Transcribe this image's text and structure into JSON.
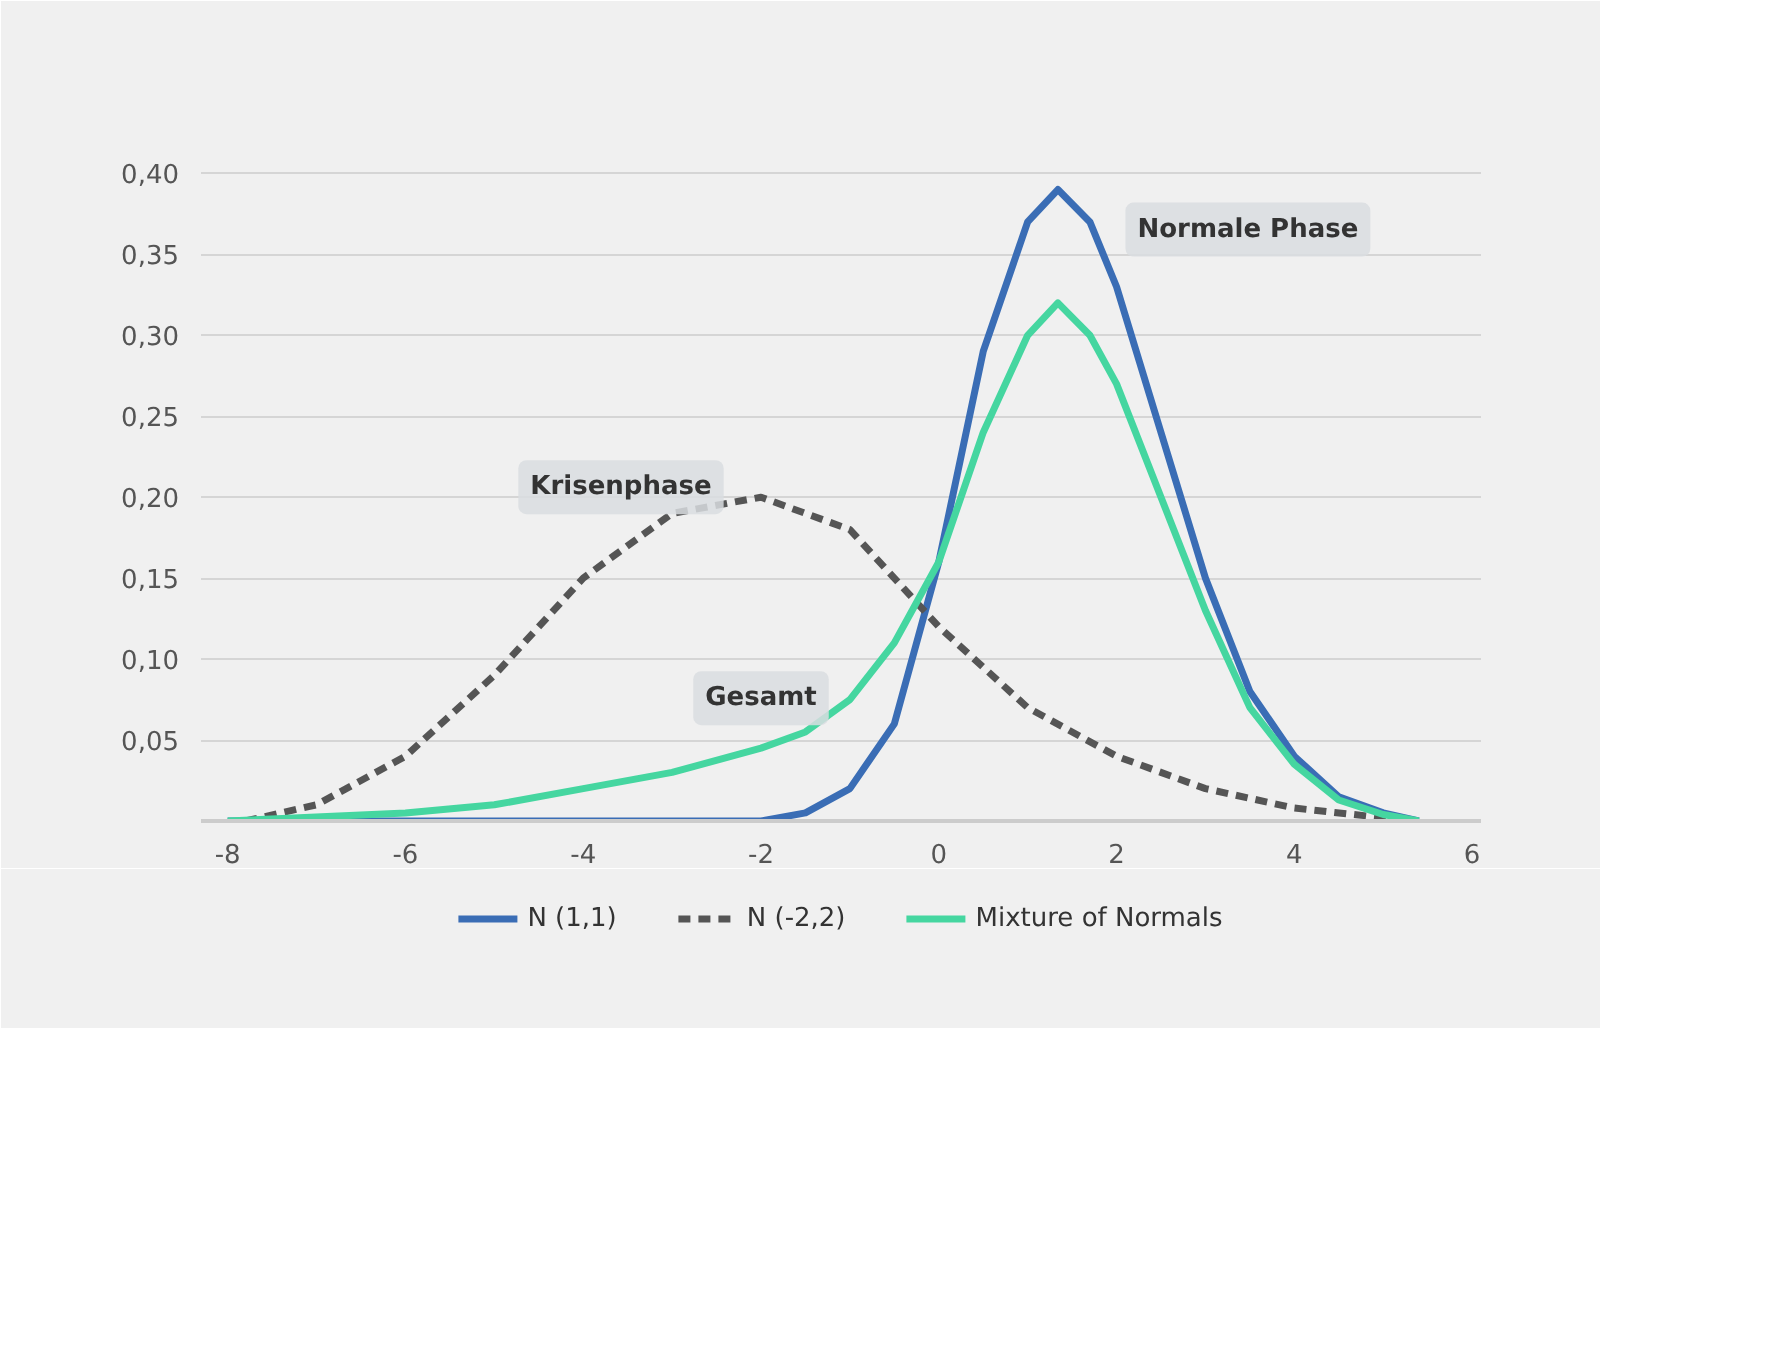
{
  "chart_data": {
    "type": "line",
    "xlim": [
      -8.3,
      6.1
    ],
    "ylim": [
      0,
      0.42
    ],
    "xticks": [
      -8,
      -6,
      -4,
      -2,
      0,
      2,
      4,
      6
    ],
    "yticks": [
      {
        "value": 0.05,
        "label": "0,05"
      },
      {
        "value": 0.1,
        "label": "0,10"
      },
      {
        "value": 0.15,
        "label": "0,15"
      },
      {
        "value": 0.2,
        "label": "0,20"
      },
      {
        "value": 0.25,
        "label": "0,25"
      },
      {
        "value": 0.3,
        "label": "0,30"
      },
      {
        "value": 0.35,
        "label": "0,35"
      },
      {
        "value": 0.4,
        "label": "0,40"
      }
    ],
    "grid": "y",
    "legend": "bottom",
    "marker": "none",
    "series": [
      {
        "name": "N (1,1)",
        "color": "#3a6db5",
        "line_style": "solid",
        "x": [
          -8,
          -3,
          -2,
          -1.5,
          -1,
          -0.5,
          0,
          0.5,
          1,
          1.34,
          1.7,
          2,
          2.5,
          3,
          3.5,
          4,
          4.5,
          5,
          5.4
        ],
        "values": [
          0,
          0,
          0,
          0.005,
          0.02,
          0.06,
          0.16,
          0.29,
          0.37,
          0.39,
          0.37,
          0.33,
          0.24,
          0.15,
          0.08,
          0.04,
          0.015,
          0.005,
          0
        ]
      },
      {
        "name": "N (-2,2)",
        "color": "#555555",
        "line_style": "dashed",
        "x": [
          -7.8,
          -7,
          -6,
          -5,
          -4,
          -3,
          -2,
          -1,
          0,
          1,
          2,
          3,
          4,
          5,
          5.3
        ],
        "values": [
          0,
          0.01,
          0.04,
          0.09,
          0.15,
          0.19,
          0.2,
          0.18,
          0.12,
          0.07,
          0.04,
          0.02,
          0.008,
          0.002,
          0
        ]
      },
      {
        "name": "Mixture of Normals",
        "color": "#45d6a0",
        "line_style": "solid",
        "x": [
          -8,
          -6,
          -5,
          -4,
          -3,
          -2,
          -1.5,
          -1,
          -0.5,
          0,
          0.5,
          1,
          1.34,
          1.7,
          2,
          2.5,
          3,
          3.5,
          4,
          4.5,
          5,
          5.4
        ],
        "values": [
          0,
          0.005,
          0.01,
          0.02,
          0.03,
          0.045,
          0.055,
          0.075,
          0.11,
          0.16,
          0.24,
          0.3,
          0.32,
          0.3,
          0.27,
          0.2,
          0.13,
          0.07,
          0.035,
          0.013,
          0.004,
          0
        ]
      }
    ],
    "annotations": [
      "Normale Phase",
      "Krisenphase",
      "Gesamt"
    ]
  }
}
